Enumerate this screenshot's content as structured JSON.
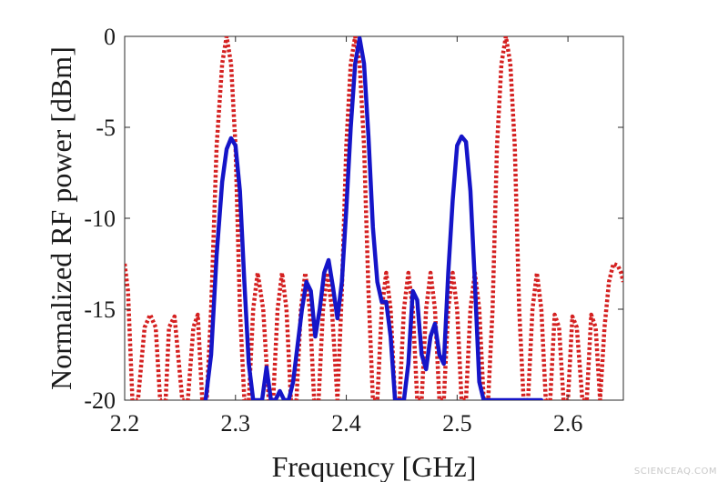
{
  "chart_data": {
    "type": "line",
    "xlabel": "Frequency [GHz]",
    "ylabel": "Normalized RF power [dBm]",
    "xlim": [
      2.2,
      2.65
    ],
    "ylim": [
      -20,
      0
    ],
    "x_ticks": [
      2.2,
      2.3,
      2.4,
      2.5,
      2.6
    ],
    "x_tick_labels": [
      "2.2",
      "2.3",
      "2.4",
      "2.5",
      "2.6"
    ],
    "y_ticks": [
      0,
      -5,
      -10,
      -15,
      -20
    ],
    "y_tick_labels": [
      "0",
      "-5",
      "-10",
      "-15",
      "-20"
    ],
    "grid": false,
    "series": [
      {
        "style": "dotted",
        "color": "#d42020",
        "x": [
          2.2,
          2.203,
          2.207,
          2.212,
          2.218,
          2.223,
          2.228,
          2.232,
          2.237,
          2.24,
          2.245,
          2.252,
          2.257,
          2.262,
          2.266,
          2.27,
          2.274,
          2.278,
          2.283,
          2.288,
          2.292,
          2.296,
          2.3,
          2.304,
          2.308,
          2.312,
          2.316,
          2.32,
          2.325,
          2.33,
          2.334,
          2.338,
          2.342,
          2.346,
          2.35,
          2.355,
          2.359,
          2.363,
          2.367,
          2.371,
          2.375,
          2.379,
          2.383,
          2.387,
          2.392,
          2.396,
          2.4,
          2.404,
          2.408,
          2.412,
          2.416,
          2.42,
          2.424,
          2.428,
          2.432,
          2.436,
          2.44,
          2.444,
          2.448,
          2.452,
          2.456,
          2.46,
          2.464,
          2.468,
          2.472,
          2.476,
          2.48,
          2.484,
          2.488,
          2.492,
          2.496,
          2.5,
          2.504,
          2.508,
          2.512,
          2.516,
          2.52,
          2.524,
          2.528,
          2.532,
          2.536,
          2.54,
          2.544,
          2.548,
          2.552,
          2.556,
          2.56,
          2.564,
          2.568,
          2.572,
          2.576,
          2.58,
          2.584,
          2.588,
          2.592,
          2.596,
          2.6,
          2.604,
          2.608,
          2.613,
          2.617,
          2.621,
          2.625,
          2.629,
          2.633,
          2.637,
          2.641,
          2.645,
          2.648,
          2.65
        ],
        "y": [
          -12.5,
          -14,
          -20,
          -20,
          -16,
          -15.3,
          -16,
          -20,
          -20,
          -16,
          -15.4,
          -20,
          -20,
          -16,
          -15.3,
          -20,
          -20,
          -15,
          -6,
          -1.5,
          0,
          -1.5,
          -6,
          -15,
          -20,
          -20,
          -15,
          -13,
          -15,
          -20,
          -20,
          -15,
          -13,
          -15,
          -20,
          -20,
          -15,
          -13,
          -15,
          -20,
          -20,
          -15,
          -13,
          -15,
          -20,
          -14,
          -6,
          -1.5,
          0,
          -1.5,
          -6,
          -14,
          -20,
          -20,
          -15,
          -13,
          -15,
          -20,
          -20,
          -15,
          -13,
          -15,
          -20,
          -20,
          -15,
          -13,
          -15,
          -20,
          -20,
          -15,
          -13,
          -15,
          -20,
          -20,
          -15,
          -13,
          -15,
          -20,
          -20,
          -15,
          -6,
          -1.5,
          0,
          -1.5,
          -6,
          -15,
          -20,
          -20,
          -15,
          -13,
          -15,
          -20,
          -20,
          -15.3,
          -16,
          -20,
          -20,
          -15.4,
          -16,
          -20,
          -20,
          -15.3,
          -16,
          -20,
          -16,
          -13.5,
          -12.5,
          -12.6,
          -13,
          -13.5
        ]
      },
      {
        "style": "solid",
        "color": "#1515c8",
        "x": [
          2.273,
          2.278,
          2.283,
          2.288,
          2.292,
          2.296,
          2.3,
          2.304,
          2.308,
          2.312,
          2.316,
          2.32,
          2.324,
          2.328,
          2.332,
          2.336,
          2.34,
          2.344,
          2.348,
          2.352,
          2.356,
          2.36,
          2.364,
          2.368,
          2.372,
          2.376,
          2.38,
          2.384,
          2.388,
          2.392,
          2.396,
          2.4,
          2.404,
          2.408,
          2.412,
          2.416,
          2.42,
          2.424,
          2.428,
          2.432,
          2.436,
          2.44,
          2.444,
          2.448,
          2.452,
          2.456,
          2.46,
          2.464,
          2.468,
          2.472,
          2.476,
          2.48,
          2.484,
          2.488,
          2.492,
          2.496,
          2.5,
          2.504,
          2.508,
          2.512,
          2.516,
          2.52,
          2.524,
          2.528,
          2.532,
          2.536,
          2.54,
          2.544,
          2.548,
          2.552,
          2.556,
          2.56,
          2.564,
          2.568,
          2.572,
          2.576
        ],
        "y": [
          -20,
          -17.5,
          -12,
          -8,
          -6.2,
          -5.6,
          -6,
          -8.5,
          -13.5,
          -18,
          -20,
          -20,
          -20,
          -18.2,
          -20,
          -20,
          -19.5,
          -20,
          -20,
          -19,
          -17,
          -15,
          -13.5,
          -14,
          -16.5,
          -15,
          -13,
          -12.3,
          -13.8,
          -15.5,
          -13.5,
          -9.5,
          -5,
          -1.5,
          -0.1,
          -1.5,
          -5.5,
          -10.5,
          -13.5,
          -14.6,
          -14.6,
          -16.5,
          -20,
          -20,
          -20,
          -18,
          -14,
          -14.5,
          -17.5,
          -18.3,
          -16.5,
          -15.8,
          -17.5,
          -18,
          -13,
          -9,
          -6,
          -5.5,
          -5.8,
          -8.5,
          -13.5,
          -19,
          -20,
          -20,
          -20,
          -20,
          -20,
          -20,
          -20,
          -20,
          -20,
          -20,
          -20,
          -20,
          -20,
          -20
        ]
      }
    ]
  },
  "watermark": "SCIENCEAQ.COM"
}
